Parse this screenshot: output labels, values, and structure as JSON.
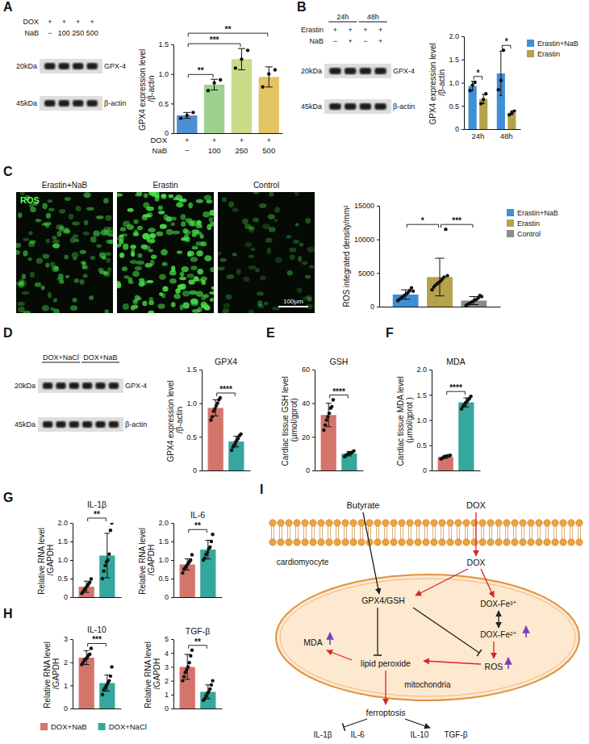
{
  "chart_data": [
    {
      "type": "bar",
      "y_label": "GPX4 expression level /β-actin",
      "categories": [
        "−",
        "100",
        "250",
        "500"
      ],
      "category_label": "NaB",
      "rows_above": [
        {
          "label": "DOX",
          "items": [
            "+",
            "+",
            "+",
            "+"
          ]
        }
      ],
      "series": [
        {
          "colors": [
            "#4d8fd1",
            "#9fd08f",
            "#c8dc8a",
            "#e3c463"
          ],
          "values": [
            0.3,
            0.82,
            1.25,
            0.95
          ],
          "errors": [
            0.05,
            0.09,
            0.18,
            0.17
          ],
          "points": [
            [
              0.25,
              0.3,
              0.35
            ],
            [
              0.72,
              0.85,
              0.9
            ],
            [
              1.1,
              1.25,
              1.4
            ],
            [
              0.78,
              1.0,
              1.07
            ]
          ]
        }
      ],
      "ylim": [
        0,
        1.5
      ],
      "yticks": [
        0,
        0.5,
        {
          "value": 1,
          "label": "1.0"
        },
        1.5
      ],
      "annotations": [
        {
          "text": "**",
          "between": [
            0,
            1
          ]
        },
        {
          "text": "***",
          "between": [
            0,
            2
          ]
        },
        {
          "text": "**",
          "between": [
            0,
            3
          ]
        }
      ]
    },
    {
      "type": "bar",
      "y_label": "GPX4 expression level /β-actin",
      "categories": [
        "24h",
        "48h"
      ],
      "series": [
        {
          "name": "Erastin+NaB",
          "color": "#3f8fd8",
          "values": [
            0.93,
            1.2
          ],
          "errors": [
            0.1,
            0.48
          ],
          "points": [
            [
              0.83,
              0.95,
              1.01
            ],
            [
              0.85,
              1.05,
              1.7
            ]
          ]
        },
        {
          "name": "Erastin",
          "color": "#b5a24a",
          "values": [
            0.65,
            0.35
          ],
          "errors": [
            0.1,
            0.04
          ],
          "points": [
            [
              0.55,
              0.64,
              0.76
            ],
            [
              0.31,
              0.35,
              0.39
            ]
          ]
        }
      ],
      "ylim": [
        0,
        2
      ],
      "yticks": [
        0,
        0.5,
        {
          "value": 1,
          "label": "1.0"
        },
        1.5,
        {
          "value": 2,
          "label": "2.0"
        }
      ],
      "legend": "right",
      "annotations": [
        {
          "text": "*",
          "between": [
            0,
            1
          ]
        },
        {
          "text": "*",
          "between": [
            2,
            3
          ]
        }
      ]
    },
    {
      "type": "bar",
      "y_label": "ROS integrated density/mm²",
      "categories": [
        null
      ],
      "series": [
        {
          "name": "Erastin+NaB",
          "color": "#3f8fd8",
          "values": [
            1800
          ],
          "errors": [
            700
          ],
          "points": [
            [
              900,
              1100,
              1300,
              1500,
              1700,
              1900,
              2100,
              2400,
              2800,
              2300
            ]
          ]
        },
        {
          "name": "Erastin",
          "color": "#b5a24a",
          "values": [
            4400
          ],
          "errors": [
            2800
          ],
          "points": [
            [
              2500,
              2900,
              3200,
              3400,
              3600,
              3800,
              4100,
              4400,
              11500,
              4600
            ]
          ]
        },
        {
          "name": "Control",
          "color": "#8c8c8c",
          "values": [
            900
          ],
          "errors": [
            600
          ],
          "points": [
            [
              200,
              350,
              500,
              650,
              800,
              950,
              1100,
              1300,
              1650,
              1500
            ]
          ]
        }
      ],
      "ylim": [
        0,
        15000
      ],
      "yticks": [
        0,
        5000,
        10000,
        15000
      ],
      "legend": "right",
      "annotations": [
        {
          "text": "*",
          "between": [
            0,
            1
          ]
        },
        {
          "text": "***",
          "between": [
            1,
            2
          ]
        }
      ]
    },
    {
      "type": "bar",
      "title": "GPX4",
      "y_label": "GPX4 expression level /β-actin",
      "categories": [
        null
      ],
      "series": [
        {
          "name": "DOX+NaB",
          "color": "#d4756c",
          "values": [
            0.93
          ],
          "errors": [
            0.12
          ],
          "points": [
            [
              0.75,
              0.8,
              0.88,
              0.92,
              0.96,
              1.0,
              1.05,
              1.08
            ]
          ]
        },
        {
          "name": "DOX+NaCl",
          "color": "#35a79d",
          "values": [
            0.43
          ],
          "errors": [
            0.08
          ],
          "points": [
            [
              0.3,
              0.35,
              0.38,
              0.42,
              0.45,
              0.48,
              0.52,
              0.54
            ]
          ]
        }
      ],
      "ylim": [
        0,
        1.5
      ],
      "yticks": [
        0,
        0.5,
        {
          "value": 1,
          "label": "1.0"
        },
        1.5
      ],
      "annotations": [
        {
          "text": "****",
          "between": [
            0,
            1
          ]
        }
      ]
    },
    {
      "type": "bar",
      "panel": "E",
      "title": "GSH",
      "y_label": "Cardiac tissue GSH level (μmol/gprot)",
      "categories": [
        null
      ],
      "series": [
        {
          "name": "DOX+NaB",
          "color": "#d4756c",
          "values": [
            33
          ],
          "errors": [
            7
          ],
          "points": [
            [
              24,
              27,
              30,
              32,
              34,
              37,
              38,
              42
            ]
          ]
        },
        {
          "name": "DOX+NaCl",
          "color": "#35a79d",
          "values": [
            10
          ],
          "errors": [
            1.3
          ],
          "points": [
            [
              8.2,
              9,
              9.5,
              10,
              10.2,
              10.5,
              11,
              11.6
            ]
          ]
        }
      ],
      "ylim": [
        0,
        60
      ],
      "yticks": [
        0,
        20,
        40,
        60
      ],
      "annotations": [
        {
          "text": "****",
          "between": [
            0,
            1
          ]
        }
      ]
    },
    {
      "type": "bar",
      "panel": "F",
      "title": "MDA",
      "y_label": "Cardiac tissue MDA level (μmol/gprot )",
      "categories": [
        null
      ],
      "series": [
        {
          "name": "DOX+NaB",
          "color": "#d4756c",
          "values": [
            0.27
          ],
          "errors": [
            0.03
          ],
          "points": [
            [
              0.23,
              0.24,
              0.26,
              0.27,
              0.28,
              0.29,
              0.29,
              0.3
            ]
          ]
        },
        {
          "name": "DOX+NaCl",
          "color": "#35a79d",
          "values": [
            1.35
          ],
          "errors": [
            0.09
          ],
          "points": [
            [
              1.22,
              1.27,
              1.3,
              1.34,
              1.37,
              1.4,
              1.43,
              1.47
            ]
          ]
        }
      ],
      "ylim": [
        0,
        2
      ],
      "yticks": [
        0,
        0.5,
        {
          "value": 1,
          "label": "1.0"
        },
        1.5,
        {
          "value": 2,
          "label": "2.0"
        }
      ],
      "annotations": [
        {
          "text": "****",
          "between": [
            0,
            1
          ]
        }
      ]
    },
    {
      "type": "bar",
      "panel": "G",
      "title": "IL-1β",
      "y_label": "Relative RNA level /GAPDH",
      "categories": [
        null
      ],
      "series": [
        {
          "name": "DOX+NaB",
          "color": "#d4756c",
          "values": [
            0.28
          ],
          "errors": [
            0.15
          ],
          "points": [
            [
              0.1,
              0.15,
              0.2,
              0.25,
              0.3,
              0.35,
              0.4,
              0.49
            ]
          ]
        },
        {
          "name": "DOX+NaCl",
          "color": "#35a79d",
          "values": [
            1.12
          ],
          "errors": [
            0.6
          ],
          "points": [
            [
              0.5,
              0.7,
              0.85,
              0.95,
              1.0,
              1.16,
              1.8,
              2.0
            ]
          ]
        }
      ],
      "ylim": [
        0,
        2
      ],
      "yticks": [
        0,
        0.5,
        {
          "value": 1,
          "label": "1.0"
        },
        1.5,
        {
          "value": 2,
          "label": "2.0"
        }
      ],
      "annotations": [
        {
          "text": "**",
          "between": [
            0,
            1
          ]
        }
      ]
    },
    {
      "type": "bar",
      "title": "IL-6",
      "y_label": "Relative RNA level /GAPDH",
      "categories": [
        null
      ],
      "series": [
        {
          "name": "DOX+NaB",
          "color": "#d4756c",
          "values": [
            0.88
          ],
          "errors": [
            0.15
          ],
          "points": [
            [
              0.65,
              0.75,
              0.8,
              0.85,
              0.9,
              0.95,
              1.0,
              1.14
            ]
          ]
        },
        {
          "name": "DOX+NaCl",
          "color": "#35a79d",
          "values": [
            1.28
          ],
          "errors": [
            0.25
          ],
          "points": [
            [
              1.0,
              1.05,
              1.15,
              1.2,
              1.3,
              1.35,
              1.5,
              1.69
            ]
          ]
        }
      ],
      "ylim": [
        0,
        2
      ],
      "yticks": [
        0,
        0.5,
        {
          "value": 1,
          "label": "1.0"
        },
        1.5,
        {
          "value": 2,
          "label": "2.0"
        }
      ],
      "annotations": [
        {
          "text": "**",
          "between": [
            0,
            1
          ]
        }
      ]
    },
    {
      "type": "bar",
      "panel": "H",
      "title": "IL-10",
      "y_label": "Relative RNA level /GAPDH",
      "categories": [
        null
      ],
      "series": [
        {
          "name": "DOX+NaB",
          "color": "#d4756c",
          "values": [
            2.2
          ],
          "errors": [
            0.3
          ],
          "points": [
            [
              1.9,
              2.0,
              2.1,
              2.15,
              2.2,
              2.3,
              2.35,
              2.6
            ]
          ]
        },
        {
          "name": "DOX+NaCl",
          "color": "#35a79d",
          "values": [
            1.1
          ],
          "errors": [
            0.35
          ],
          "points": [
            [
              0.6,
              0.8,
              0.9,
              1.0,
              1.1,
              1.2,
              1.4,
              1.8
            ]
          ]
        }
      ],
      "ylim": [
        0,
        3
      ],
      "yticks": [
        0,
        1,
        2,
        3
      ],
      "legend": "bottom",
      "annotations": [
        {
          "text": "***",
          "between": [
            0,
            1
          ]
        }
      ]
    },
    {
      "type": "bar",
      "title": "TGF-β",
      "y_label": "Relative RNA level /GAPDH",
      "categories": [
        null
      ],
      "series": [
        {
          "name": "DOX+NaB",
          "color": "#d4756c",
          "values": [
            3.0
          ],
          "errors": [
            0.9
          ],
          "points": [
            [
              2.0,
              2.3,
              2.6,
              2.8,
              3.0,
              3.3,
              3.8,
              4.2
            ]
          ]
        },
        {
          "name": "DOX+NaCl",
          "color": "#35a79d",
          "values": [
            1.2
          ],
          "errors": [
            0.5
          ],
          "points": [
            [
              0.6,
              0.7,
              0.9,
              1.1,
              1.2,
              1.4,
              1.7,
              2.0
            ]
          ]
        }
      ],
      "ylim": [
        0,
        5
      ],
      "yticks": [
        0,
        1,
        2,
        3,
        4,
        5
      ],
      "annotations": [
        {
          "text": "**",
          "between": [
            0,
            1
          ]
        }
      ]
    }
  ],
  "blots": [
    {
      "panel": "A",
      "rows": [
        {
          "label": "DOX",
          "items": [
            "+",
            "+",
            "+",
            "+"
          ]
        },
        {
          "label": "NaB",
          "items": [
            "−",
            "100",
            "250",
            "500"
          ]
        }
      ],
      "bands": [
        {
          "name": "GPX-4",
          "kda": "20kDa"
        },
        {
          "name": "β-actin",
          "kda": "45kDa"
        }
      ]
    },
    {
      "panel": "B",
      "groups": [
        {
          "label": "24h",
          "lanes": 2
        },
        {
          "label": "48h",
          "lanes": 2
        }
      ],
      "rows": [
        {
          "label": "Erastin",
          "items": [
            "+",
            "+",
            "+",
            "+"
          ]
        },
        {
          "label": "NaB",
          "items": [
            "−",
            "+",
            "−",
            "+"
          ]
        }
      ],
      "bands": [
        {
          "name": "GPX-4",
          "kda": "20kDa"
        },
        {
          "name": "β-actin",
          "kda": "45kDa"
        }
      ]
    },
    {
      "panel": "D",
      "groups": [
        {
          "label": "DOX+NaCl",
          "lanes": 3
        },
        {
          "label": "DOX+NaB",
          "lanes": 3
        }
      ],
      "bands": [
        {
          "name": "GPX-4",
          "kda": "20kDa"
        },
        {
          "name": "β-actin",
          "kda": "45kDa"
        }
      ]
    }
  ],
  "images": {
    "panel": "C",
    "channel": "ROS",
    "labels": [
      "Erastin+NaB",
      "Erastin",
      "Control"
    ],
    "scale_bar": "100μm"
  },
  "diagram": {
    "panel": "I",
    "labels": {
      "butyrate": "Butyrate",
      "dox_out": "DOX",
      "cell": "cardiomyocyte",
      "dox_in": "DOX",
      "gpx4": "GPX4/GSH",
      "fe3": "DOX-Fe³⁺",
      "fe2": "DOX-Fe²⁺",
      "mda": "MDA",
      "lipid": "lipid peroxide",
      "ros": "ROS",
      "mito": "mitochondria",
      "ferroptosis": "ferroptosis",
      "il1b": "IL-1β",
      "il6": "IL-6",
      "il10": "IL-10",
      "tgfb": "TGF-β"
    }
  }
}
